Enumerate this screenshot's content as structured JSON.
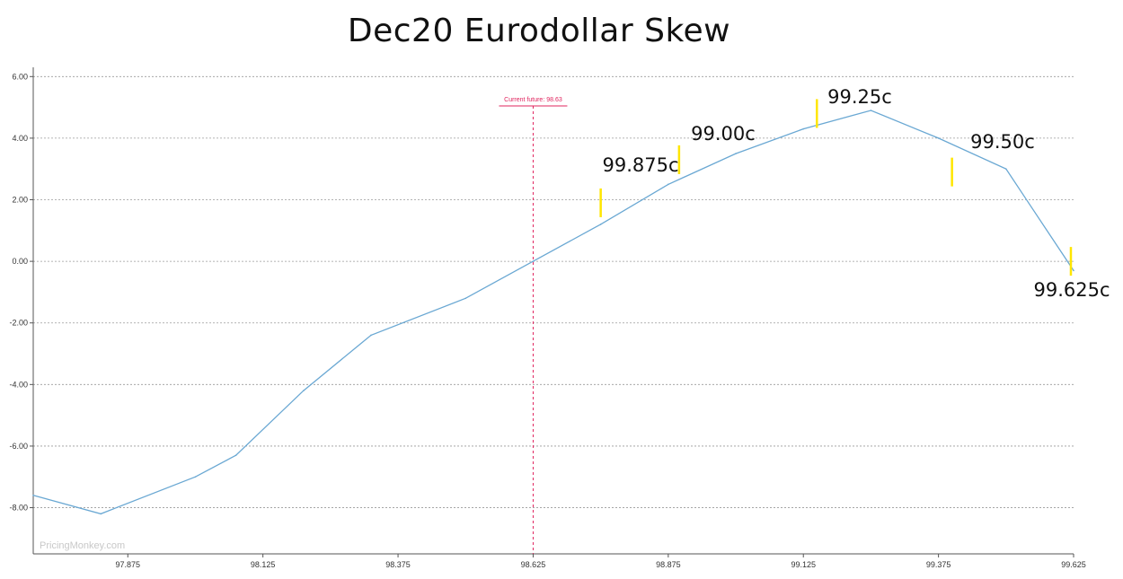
{
  "chart_data": {
    "type": "line",
    "title": "Dec20 Eurodollar Skew",
    "xlabel": "",
    "ylabel": "",
    "xlim": [
      97.7,
      99.625
    ],
    "ylim": [
      -9.5,
      6.3
    ],
    "grid": true,
    "x_ticks": [
      "97.875",
      "98.125",
      "98.375",
      "98.625",
      "98.875",
      "99.125",
      "99.375",
      "99.625"
    ],
    "y_ticks": [
      "6.00",
      "4.00",
      "2.00",
      "0.00",
      "-2.00",
      "-4.00",
      "-6.00",
      "-8.00"
    ],
    "series": [
      {
        "name": "",
        "color": "#6aa8d3",
        "x": [
          97.7,
          97.825,
          98.0,
          98.075,
          98.2,
          98.325,
          98.5,
          98.625,
          98.75,
          98.875,
          99.0,
          99.125,
          99.25,
          99.375,
          99.5,
          99.625
        ],
        "y": [
          -7.6,
          -8.2,
          -7.0,
          -6.3,
          -4.2,
          -2.4,
          -1.2,
          0.0,
          1.2,
          2.5,
          3.5,
          4.3,
          4.9,
          4.0,
          3.0,
          -0.3
        ]
      }
    ],
    "reference_line": {
      "x": 98.625,
      "label": "Current future: 98.63",
      "color": "#e0245e"
    },
    "annotations": [
      {
        "text": "99.875c",
        "x": 98.75,
        "y": 2.1
      },
      {
        "text": "99.00c",
        "x": 98.885,
        "y": 3.3
      },
      {
        "text": "99.25c",
        "x": 99.135,
        "y": 5.05
      },
      {
        "text": "99.50c",
        "x": 99.385,
        "y": 2.9
      },
      {
        "text": "99.625c",
        "x": 99.59,
        "y": 0.0
      }
    ],
    "annotation_marker_color": "#ffe600",
    "watermark": "PricingMonkey.com"
  }
}
